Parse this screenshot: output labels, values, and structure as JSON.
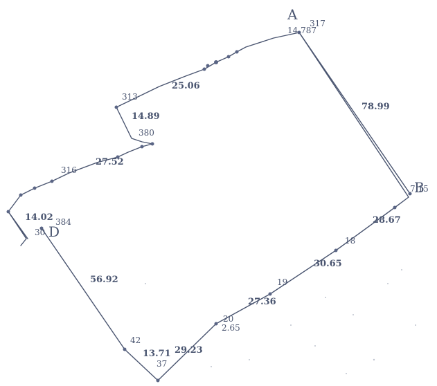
{
  "corners": {
    "A": "A",
    "B": "B",
    "D": "D"
  },
  "edge_lengths": {
    "ab": "78.99",
    "north_1": "25.06",
    "north_2": "14.89",
    "north_3": "27.52",
    "north_4": "14.02",
    "west": "56.92",
    "sw_1": "13.71",
    "se_1": "29.23",
    "se_2": "27.36",
    "se_3": "30.65",
    "se_4": "28.67"
  },
  "point_labels": {
    "p317": "317",
    "p1787": "14.787",
    "p313": "313",
    "p380": "380",
    "p316": "316",
    "p384": "384",
    "p42": "42",
    "p37": "37",
    "p18": "18",
    "p19": "19",
    "p265": "2.65",
    "p20": "20",
    "p_d_num": "30",
    "p_b_num": "7.15"
  },
  "colors": {
    "line": "#4a5570",
    "background": "#ffffff"
  }
}
